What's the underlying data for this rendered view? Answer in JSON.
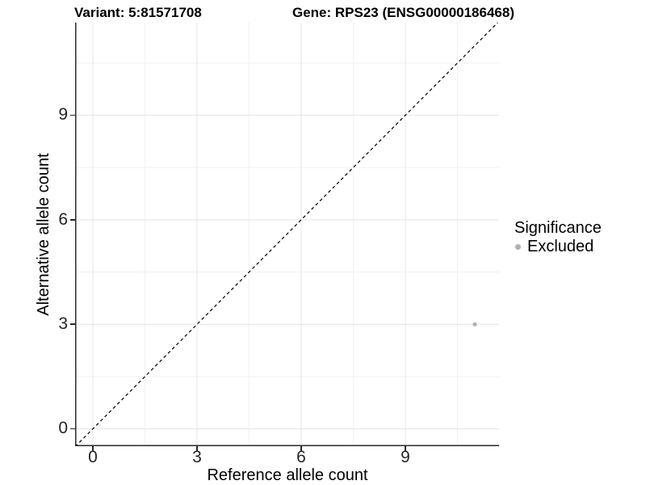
{
  "header": {
    "variant_title": "Variant: 5:81571708",
    "gene_title": "Gene: RPS23 (ENSG00000186468)"
  },
  "axes": {
    "x": {
      "title": "Reference allele count",
      "tick_labels": [
        "0",
        "3",
        "6",
        "9"
      ]
    },
    "y": {
      "title": "Alternative allele count",
      "tick_labels": [
        "0",
        "3",
        "6",
        "9"
      ]
    }
  },
  "legend": {
    "title": "Significance",
    "items": [
      {
        "label": "Excluded",
        "color": "#b0b0b0"
      }
    ]
  },
  "colors": {
    "grid_major": "#e4e4e4",
    "grid_minor": "#f1f1f1",
    "axis_line": "#2a2a2a",
    "point": "#b0b0b0",
    "reference_line": "#000000"
  },
  "chart_data": {
    "type": "scatter",
    "title": "Variant: 5:81571708 | Gene: RPS23 (ENSG00000186468)",
    "xlabel": "Reference allele count",
    "ylabel": "Alternative allele count",
    "xlim": [
      -0.5,
      11.7
    ],
    "ylim": [
      -0.5,
      11.7
    ],
    "x_ticks": [
      0,
      3,
      6,
      9
    ],
    "y_ticks": [
      0,
      3,
      6,
      9
    ],
    "minor_tick_offset": 1.5,
    "grid": true,
    "legend_position": "right",
    "series": [
      {
        "name": "Excluded",
        "color": "#b0b0b0",
        "points": [
          {
            "x": 11,
            "y": 3
          }
        ]
      }
    ],
    "reference_line": {
      "style": "dashed",
      "slope": 1,
      "intercept": 0,
      "color": "#000000"
    }
  }
}
